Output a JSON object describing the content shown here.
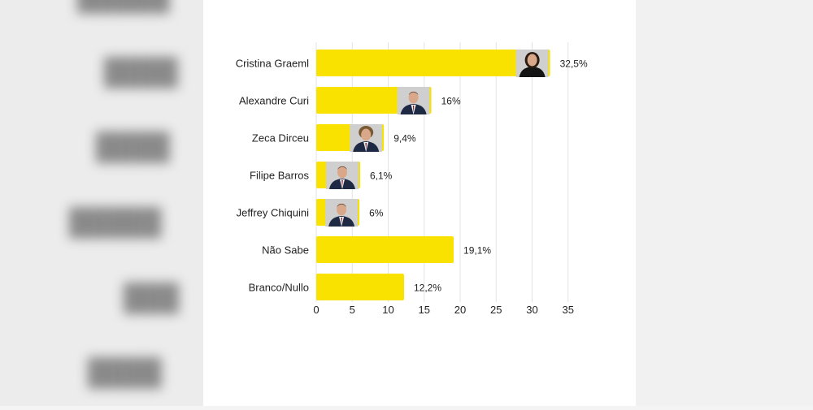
{
  "chart_data": {
    "type": "bar",
    "orientation": "horizontal",
    "categories": [
      "Cristina Graeml",
      "Alexandre Curi",
      "Zeca Dirceu",
      "Filipe Barros",
      "Jeffrey Chiquini",
      "Não Sabe",
      "Branco/Nullo"
    ],
    "values": [
      32.5,
      16,
      9.4,
      6.1,
      6,
      19.1,
      12.2
    ],
    "value_labels": [
      "32,5%",
      "16%",
      "9,4%",
      "6,1%",
      "6%",
      "19,1%",
      "12,2%"
    ],
    "has_photo": [
      true,
      true,
      true,
      true,
      true,
      false,
      false
    ],
    "xlim": [
      0,
      35
    ],
    "xticks": [
      0,
      5,
      10,
      15,
      20,
      25,
      30,
      35
    ],
    "grid": true,
    "bar_color": "#f9e200",
    "title": "",
    "xlabel": "",
    "ylabel": ""
  }
}
